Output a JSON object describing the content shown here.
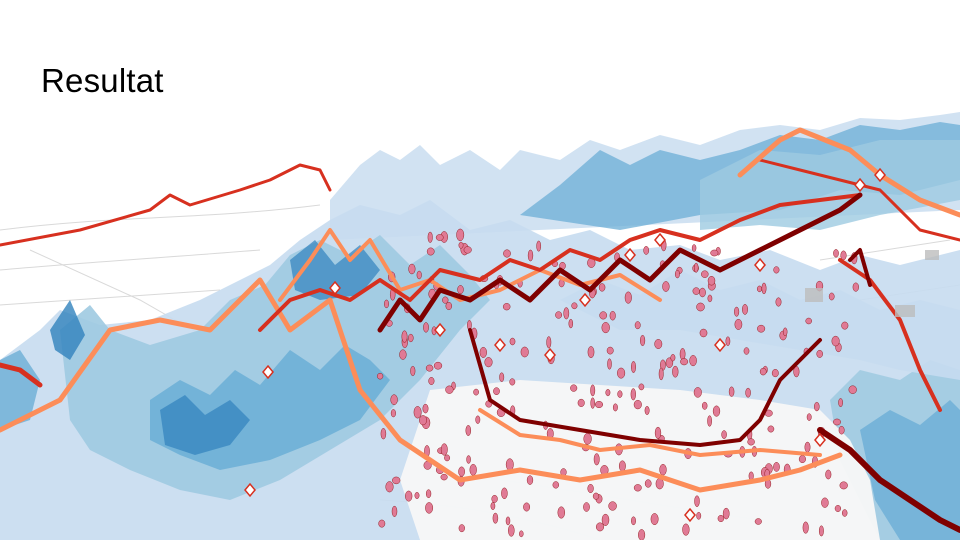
{
  "slide": {
    "title": "Resultat"
  },
  "visualization": {
    "kind": "3d-terrain-map-render",
    "colors": {
      "background": "#ffffff",
      "light_blue": "#c6dbef",
      "mid_blue": "#9ecae1",
      "blue": "#6baed6",
      "dark_blue": "#3182bd",
      "orange": "#fc8d59",
      "red": "#d7301f",
      "dark_red": "#7f0000",
      "marker_pink": "#e07a95",
      "gray": "#bdbdbd"
    }
  }
}
